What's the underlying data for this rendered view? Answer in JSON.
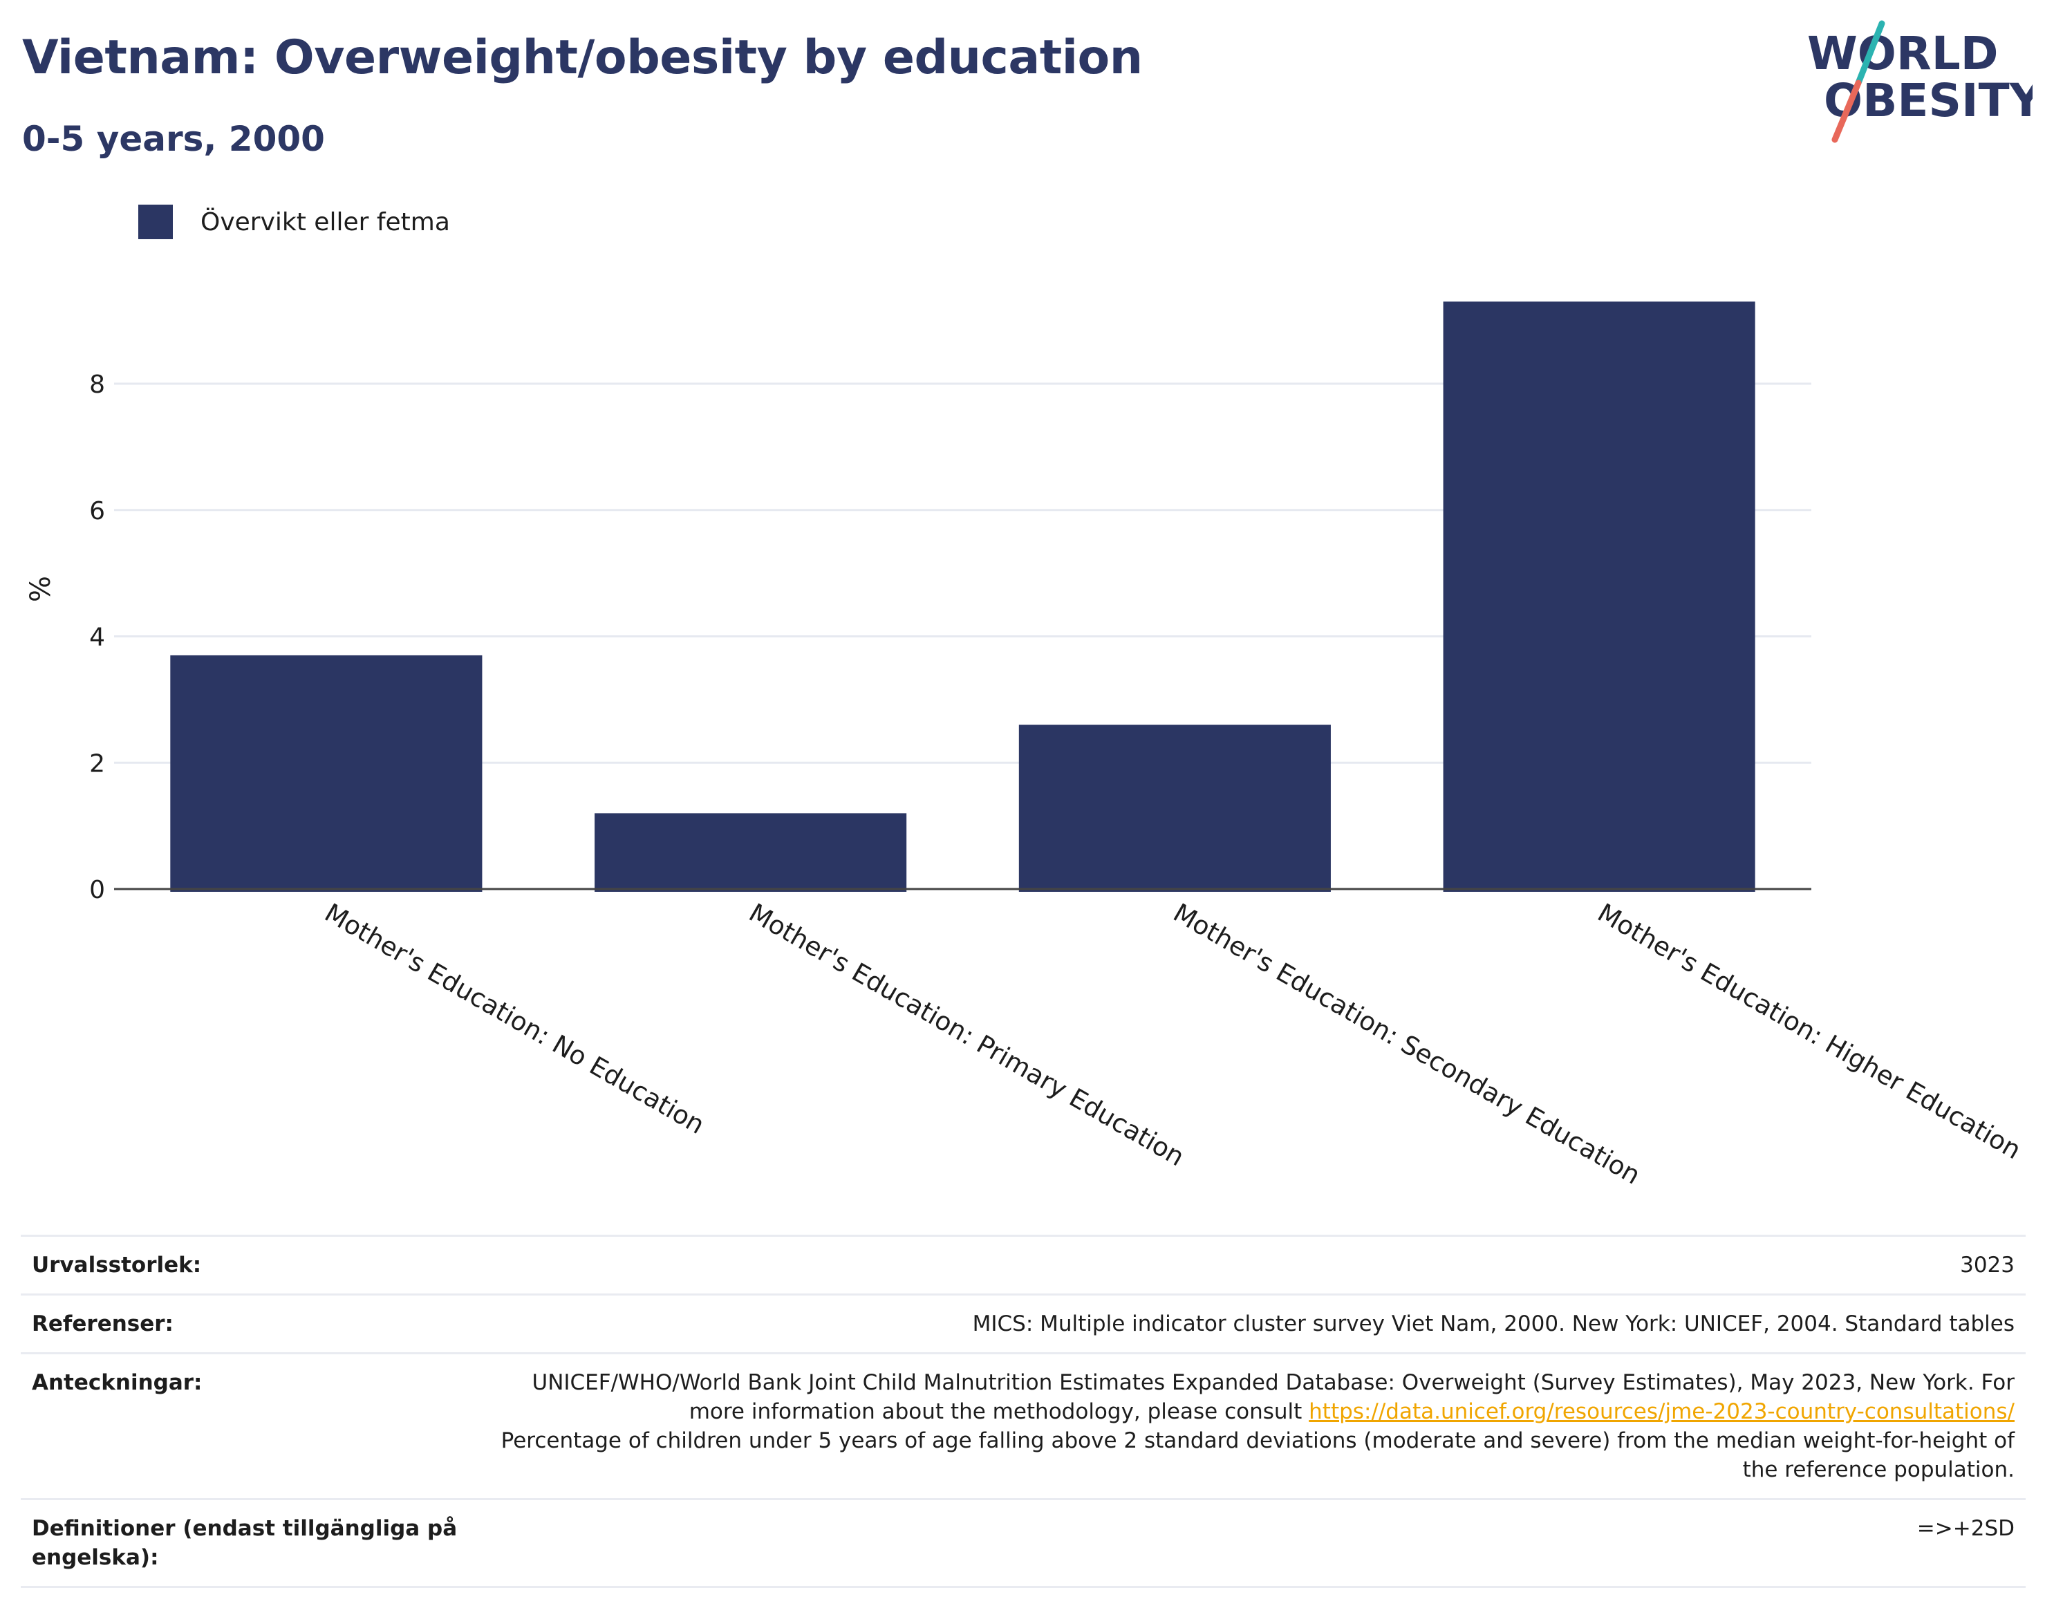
{
  "title": "Vietnam: Overweight/obesity by education",
  "subtitle": "0-5 years, 2000",
  "logo": {
    "line1": "WORLD",
    "line2": "OBESITY"
  },
  "legend": {
    "label": "Övervikt eller fetma",
    "color": "#2b3663"
  },
  "chart_data": {
    "type": "bar",
    "categories": [
      "Mother's Education: No Education",
      "Mother's Education: Primary Education",
      "Mother's Education: Secondary Education",
      "Mother's Education: Higher Education"
    ],
    "series": [
      {
        "name": "Övervikt eller fetma",
        "values": [
          3.7,
          1.2,
          2.6,
          9.3
        ],
        "color": "#2b3663"
      }
    ],
    "ylabel": "%",
    "xlabel": "",
    "ylim": [
      0,
      9.5
    ],
    "yticks": [
      0,
      2,
      4,
      6,
      8
    ],
    "grid": true
  },
  "info": {
    "sample": {
      "label": "Urvalsstorlek:",
      "value": "3023"
    },
    "refs": {
      "label": "Referenser:",
      "value": "MICS: Multiple indicator cluster survey Viet Nam, 2000. New York: UNICEF, 2004. Standard tables"
    },
    "notes": {
      "label": "Anteckningar:",
      "text1": "UNICEF/WHO/World Bank Joint Child Malnutrition Estimates Expanded Database: Overweight (Survey Estimates), May 2023, New York. For more information about the methodology, please consult ",
      "link": "https://data.unicef.org/resources/jme-2023-country-consultations/",
      "text2": "Percentage of children under 5 years of age falling above 2 standard deviations (moderate and severe) from the median weight-for-height of the reference population."
    },
    "defs": {
      "label": "Definitioner (endast tillgängliga på engelska):",
      "value": "=>+2SD"
    }
  },
  "colors": {
    "title": "#2c3764",
    "bar": "#2b3663",
    "grid": "#e6e9f0",
    "link": "#f0a500",
    "logo_teal": "#2bb3b1",
    "logo_coral": "#e8685a"
  }
}
